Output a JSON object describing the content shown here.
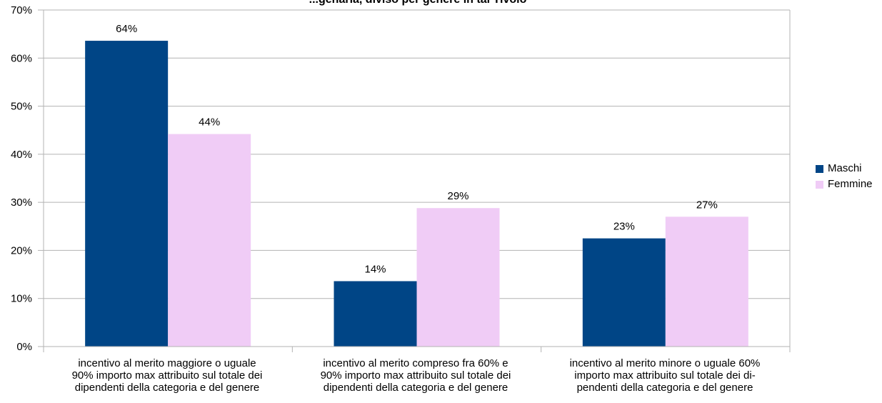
{
  "chart_data": {
    "type": "bar",
    "title": "...genaria, diviso per genere in tal Tivolo",
    "categories": [
      "incentivo al merito maggiore o uguale 90% importo max attribuito sul totale dei dipendenti della categoria e del genere",
      "incentivo al merito compreso fra 60% e 90% importo max attribuito sul totale dei dipendenti della categoria e del genere",
      "incentivo al merito minore o uguale 60% importo max attribuito sul totale dei di-pendenti della categoria e del genere"
    ],
    "category_lines": [
      [
        "incentivo al merito maggiore o uguale",
        "90% importo max attribuito sul totale dei",
        "dipendenti della categoria e del genere"
      ],
      [
        "incentivo al merito compreso fra 60% e",
        "90% importo max attribuito sul totale dei",
        "dipendenti della categoria e del genere"
      ],
      [
        "incentivo al merito minore o uguale 60%",
        "importo max attribuito sul totale dei di-",
        "pendenti della categoria e del genere"
      ]
    ],
    "series": [
      {
        "name": "Maschi",
        "color": "#004586",
        "values": [
          63.6,
          13.6,
          22.5
        ],
        "labels": [
          "64%",
          "14%",
          "23%"
        ]
      },
      {
        "name": "Femmine",
        "color": "#f0ccf6",
        "values": [
          44.2,
          28.8,
          27.0
        ],
        "labels": [
          "44%",
          "29%",
          "27%"
        ]
      }
    ],
    "ylim": [
      0,
      70
    ],
    "yticks": [
      "0%",
      "10%",
      "20%",
      "30%",
      "40%",
      "50%",
      "60%",
      "70%"
    ],
    "grid": true,
    "legend_position": "right"
  }
}
